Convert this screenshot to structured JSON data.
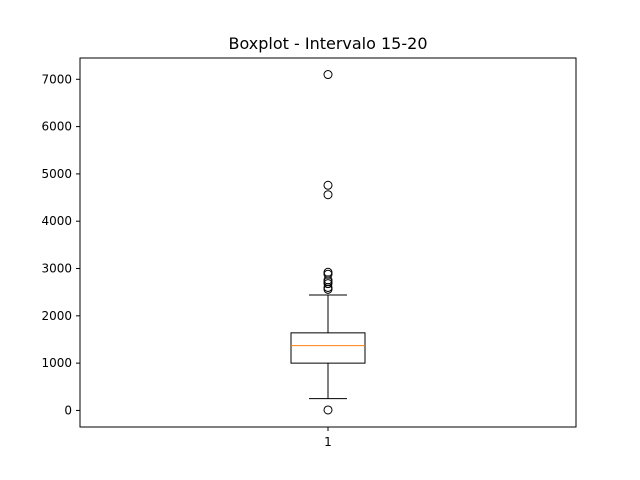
{
  "chart_data": {
    "type": "boxplot",
    "title": "Boxplot - Intervalo 15-20",
    "xlabel": "",
    "ylabel": "",
    "categories": [
      "1"
    ],
    "ylim": [
      -350,
      7450
    ],
    "yticks": [
      0,
      1000,
      2000,
      3000,
      4000,
      5000,
      6000,
      7000
    ],
    "ytick_labels": [
      "0",
      "1000",
      "2000",
      "3000",
      "4000",
      "5000",
      "6000",
      "7000"
    ],
    "boxes": [
      {
        "label": "1",
        "whisker_low": 250,
        "q1": 1000,
        "median": 1370,
        "q3": 1640,
        "whisker_high": 2440,
        "outliers": [
          10,
          2560,
          2600,
          2680,
          2720,
          2760,
          2880,
          2920,
          4560,
          4760,
          7100
        ]
      }
    ],
    "grid": false,
    "colors": {
      "box": "#000000",
      "median": "#ff7f0e",
      "outlier": "#000000"
    }
  }
}
